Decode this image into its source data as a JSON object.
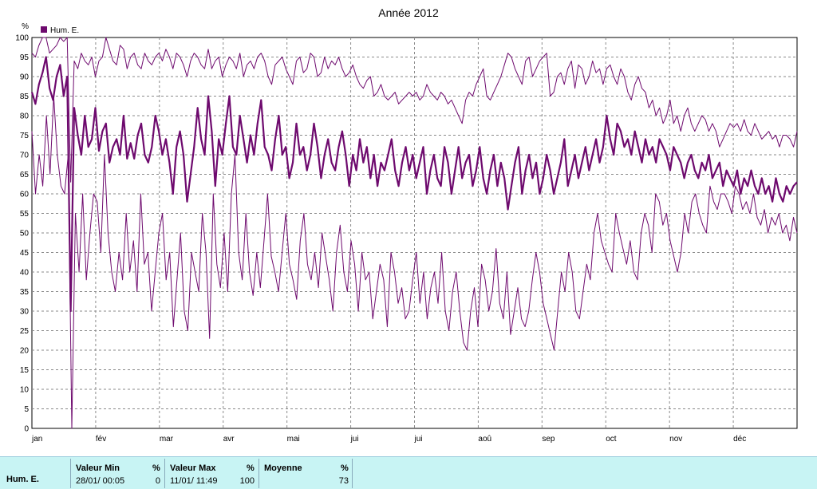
{
  "chart_data": {
    "type": "line",
    "title": "Année 2012",
    "ylabel": "%",
    "ylim": [
      0,
      100
    ],
    "yticks": [
      0,
      5,
      10,
      15,
      20,
      25,
      30,
      35,
      40,
      45,
      50,
      55,
      60,
      65,
      70,
      75,
      80,
      85,
      90,
      95,
      100
    ],
    "xticks": [
      "jan",
      "fév",
      "mar",
      "avr",
      "mai",
      "jui",
      "jui",
      "aoû",
      "sep",
      "oct",
      "nov",
      "déc"
    ],
    "grid": true,
    "legend": {
      "position": "top-left",
      "entries": [
        "Hum. E."
      ]
    },
    "color": "#6e0a6e",
    "series": [
      {
        "name": "Hum. E.",
        "role": "max",
        "values": [
          96,
          95,
          98,
          100,
          100,
          96,
          97,
          98,
          100,
          99,
          100,
          63,
          94,
          92,
          96,
          94,
          93,
          95,
          90,
          94,
          95,
          100,
          97,
          94,
          93,
          98,
          97,
          92,
          95,
          96,
          93,
          92,
          96,
          94,
          93,
          95,
          96,
          94,
          97,
          95,
          92,
          96,
          95,
          93,
          90,
          94,
          96,
          95,
          93,
          92,
          97,
          92,
          94,
          95,
          90,
          93,
          95,
          94,
          92,
          96,
          90,
          93,
          94,
          92,
          95,
          96,
          94,
          90,
          88,
          93,
          94,
          95,
          92,
          90,
          88,
          94,
          95,
          91,
          92,
          96,
          95,
          90,
          91,
          95,
          92,
          94,
          93,
          95,
          92,
          90,
          91,
          93,
          90,
          88,
          87,
          89,
          90,
          85,
          86,
          88,
          85,
          84,
          85,
          86,
          83,
          84,
          85,
          86,
          85,
          86,
          84,
          85,
          88,
          86,
          85,
          84,
          86,
          85,
          83,
          84,
          82,
          80,
          78,
          84,
          86,
          85,
          88,
          90,
          92,
          85,
          84,
          86,
          88,
          90,
          93,
          96,
          95,
          92,
          90,
          88,
          94,
          95,
          90,
          92,
          94,
          95,
          96,
          85,
          86,
          90,
          91,
          88,
          92,
          94,
          87,
          93,
          92,
          88,
          90,
          94,
          91,
          92,
          88,
          92,
          93,
          90,
          88,
          92,
          90,
          86,
          84,
          88,
          90,
          87,
          86,
          82,
          84,
          80,
          82,
          78,
          80,
          84,
          78,
          80,
          76,
          80,
          82,
          78,
          76,
          78,
          80,
          79,
          76,
          78,
          76,
          72,
          74,
          76,
          78,
          77,
          78,
          76,
          79,
          76,
          75,
          78,
          76,
          74,
          75,
          76,
          74,
          75,
          72,
          75,
          75,
          74,
          72,
          76
        ]
      },
      {
        "name": "Hum. E.",
        "role": "avg",
        "values": [
          86,
          83,
          88,
          91,
          95,
          87,
          84,
          90,
          93,
          85,
          90,
          30,
          82,
          75,
          70,
          80,
          72,
          74,
          82,
          71,
          76,
          78,
          68,
          72,
          74,
          70,
          80,
          69,
          73,
          69,
          75,
          78,
          70,
          68,
          72,
          80,
          76,
          70,
          74,
          68,
          60,
          72,
          76,
          70,
          58,
          65,
          72,
          82,
          74,
          70,
          85,
          76,
          62,
          74,
          70,
          78,
          85,
          72,
          70,
          80,
          74,
          68,
          75,
          70,
          78,
          84,
          72,
          70,
          66,
          74,
          80,
          70,
          72,
          64,
          68,
          78,
          70,
          72,
          66,
          70,
          78,
          72,
          64,
          70,
          74,
          68,
          66,
          72,
          76,
          70,
          62,
          70,
          66,
          74,
          68,
          72,
          64,
          70,
          62,
          68,
          66,
          70,
          74,
          66,
          62,
          68,
          72,
          66,
          70,
          64,
          68,
          72,
          60,
          66,
          70,
          64,
          62,
          72,
          68,
          60,
          66,
          72,
          64,
          68,
          70,
          62,
          66,
          72,
          64,
          60,
          66,
          70,
          62,
          68,
          64,
          56,
          62,
          68,
          72,
          60,
          66,
          70,
          64,
          68,
          60,
          64,
          70,
          66,
          60,
          64,
          68,
          74,
          62,
          66,
          70,
          64,
          68,
          72,
          66,
          70,
          74,
          68,
          72,
          80,
          74,
          70,
          78,
          76,
          72,
          74,
          70,
          76,
          72,
          68,
          74,
          70,
          72,
          68,
          74,
          72,
          70,
          66,
          72,
          70,
          68,
          64,
          68,
          70,
          66,
          64,
          68,
          66,
          70,
          64,
          66,
          68,
          62,
          66,
          64,
          62,
          66,
          60,
          64,
          62,
          66,
          62,
          60,
          64,
          60,
          62,
          58,
          64,
          60,
          58,
          62,
          60,
          62,
          63
        ]
      },
      {
        "name": "Hum. E.",
        "role": "min",
        "values": [
          76,
          60,
          70,
          62,
          80,
          65,
          85,
          70,
          62,
          60,
          70,
          0,
          55,
          40,
          60,
          38,
          50,
          60,
          58,
          45,
          70,
          50,
          40,
          35,
          45,
          38,
          55,
          40,
          48,
          35,
          60,
          42,
          45,
          30,
          40,
          50,
          55,
          38,
          45,
          26,
          38,
          50,
          30,
          25,
          45,
          40,
          35,
          55,
          45,
          23,
          60,
          42,
          36,
          50,
          35,
          60,
          70,
          45,
          38,
          55,
          40,
          34,
          45,
          36,
          48,
          60,
          44,
          40,
          35,
          45,
          55,
          42,
          38,
          33,
          48,
          55,
          42,
          38,
          45,
          36,
          50,
          44,
          38,
          30,
          45,
          52,
          40,
          35,
          48,
          42,
          30,
          45,
          38,
          40,
          28,
          35,
          42,
          38,
          26,
          45,
          40,
          32,
          36,
          28,
          30,
          38,
          45,
          32,
          40,
          28,
          36,
          40,
          32,
          45,
          30,
          25,
          35,
          40,
          30,
          22,
          20,
          30,
          36,
          26,
          42,
          38,
          30,
          35,
          46,
          32,
          28,
          40,
          24,
          30,
          36,
          28,
          26,
          30,
          38,
          45,
          40,
          32,
          28,
          24,
          20,
          30,
          40,
          35,
          45,
          40,
          30,
          28,
          35,
          42,
          38,
          50,
          55,
          48,
          45,
          42,
          40,
          55,
          50,
          46,
          42,
          48,
          40,
          38,
          50,
          55,
          52,
          45,
          60,
          58,
          52,
          55,
          48,
          44,
          40,
          45,
          55,
          50,
          58,
          60,
          55,
          52,
          50,
          62,
          58,
          56,
          60,
          60,
          58,
          55,
          62,
          60,
          56,
          58,
          55,
          60,
          54,
          52,
          56,
          50,
          54,
          52,
          55,
          50,
          52,
          48,
          54,
          50
        ]
      }
    ]
  },
  "summary": {
    "row_label": "Hum. E.",
    "min_header": "Valeur Min",
    "min_unit": "%",
    "min_date": "28/01/  00:05",
    "min_value": "0",
    "max_header": "Valeur Max",
    "max_unit": "%",
    "max_date": "11/01/  11:49",
    "max_value": "100",
    "avg_header": "Moyenne",
    "avg_unit": "%",
    "avg_value": "73"
  }
}
